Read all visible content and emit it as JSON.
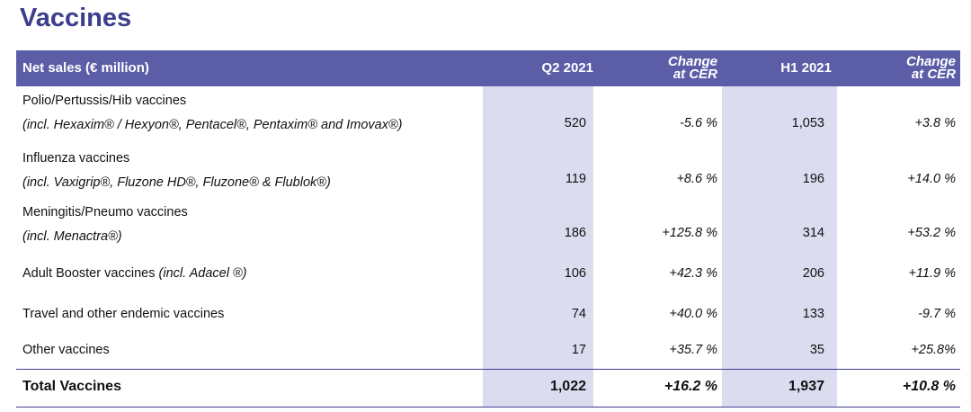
{
  "title": "Vaccines",
  "table": {
    "header": [
      [
        "Net sales (€ million)"
      ],
      [
        "Q2 2021"
      ],
      [
        "Change",
        "at CER"
      ],
      [
        "H1 2021"
      ],
      [
        "Change",
        "at CER"
      ]
    ],
    "rows": [
      {
        "name": "Polio/Pertussis/Hib vaccines",
        "note": "(incl. Hexaxim® / Hexyon®, Pentacel®, Pentaxim® and Imovax®)",
        "cells": [
          "520",
          "-5.6 %",
          "1,053",
          "+3.8 %"
        ]
      },
      {
        "name": "Influenza vaccines",
        "note": "(incl. Vaxigrip®, Fluzone HD®, Fluzone® & Flublok®)",
        "cells": [
          "119",
          "+8.6 %",
          "196",
          "+14.0 %"
        ]
      },
      {
        "name": "Meningitis/Pneumo vaccines",
        "note": "(incl. Menactra®)",
        "cells": [
          "186",
          "+125.8 %",
          "314",
          "+53.2 %"
        ]
      },
      {
        "name": "Adult Booster vaccines",
        "inline_note": "(incl. Adacel ®)",
        "cells": [
          "106",
          "+42.3 %",
          "206",
          "+11.9 %"
        ]
      },
      {
        "name": "Travel and other endemic vaccines",
        "cells": [
          "74",
          "+40.0 %",
          "133",
          "-9.7 %"
        ]
      },
      {
        "name": "Other vaccines",
        "cells": [
          "17",
          "+35.7 %",
          "35",
          "+25.8%"
        ]
      }
    ],
    "total": {
      "name": "Total Vaccines",
      "cells": [
        "1,022",
        "+16.2 %",
        "1,937",
        "+10.8 %"
      ]
    }
  }
}
